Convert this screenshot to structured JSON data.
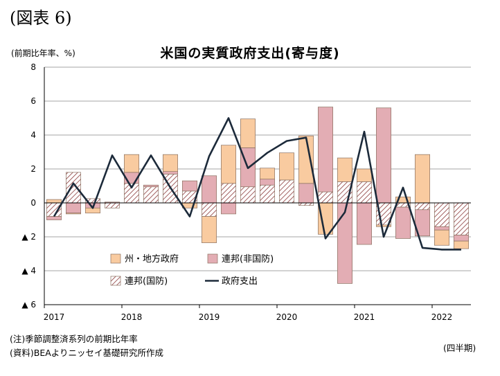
{
  "figure_label": "(図表 6)",
  "notes": {
    "note1": "(注)季節調整済系列の前期比年率",
    "note2": "(資料)BEAよりニッセイ基礎研究所作成",
    "period": "(四半期)"
  },
  "colors": {
    "state_local": "#f9cba0",
    "federal_nondefense": "#e3adb4",
    "federal_defense_hatch": "#8b3a3a",
    "line": "#1c2a3a"
  },
  "chart_data": {
    "type": "bar",
    "stacked": true,
    "title": "米国の実質政府支出(寄与度)",
    "ylabel": "(前期比年率、%)",
    "ylim": [
      -6,
      8
    ],
    "yticks": [
      8,
      6,
      4,
      2,
      0,
      -2,
      -4,
      -6
    ],
    "ytick_labels": [
      "8",
      "6",
      "4",
      "2",
      "0",
      "▲ 2",
      "▲ 4",
      "▲ 6"
    ],
    "x_year_labels": [
      {
        "label": "2017",
        "index": 0
      },
      {
        "label": "2018",
        "index": 4
      },
      {
        "label": "2019",
        "index": 8
      },
      {
        "label": "2020",
        "index": 12
      },
      {
        "label": "2021",
        "index": 16
      },
      {
        "label": "2022",
        "index": 20
      }
    ],
    "categories": [
      "2017Q1",
      "2017Q2",
      "2017Q3",
      "2017Q4",
      "2018Q1",
      "2018Q2",
      "2018Q3",
      "2018Q4",
      "2019Q1",
      "2019Q2",
      "2019Q3",
      "2019Q4",
      "2020Q1",
      "2020Q2",
      "2020Q3",
      "2020Q4",
      "2021Q1",
      "2021Q2",
      "2021Q3",
      "2021Q4",
      "2022Q1",
      "2022Q2"
    ],
    "grid": true,
    "legend_position": "lower-left",
    "series": [
      {
        "name": "連邦(国防)",
        "kind": "bar",
        "pattern": "hatch",
        "values": [
          -0.8,
          1.8,
          0.25,
          -0.3,
          1.15,
          0.95,
          1.7,
          0.7,
          -0.8,
          1.15,
          0.95,
          1.05,
          1.35,
          -0.15,
          0.65,
          1.25,
          1.25,
          -1.3,
          -0.25,
          -0.4,
          -1.4,
          -1.9
        ]
      },
      {
        "name": "連邦(非国防)",
        "kind": "bar",
        "values": [
          -0.2,
          -0.6,
          -0.3,
          0.05,
          0.65,
          0.1,
          0.15,
          0.6,
          1.6,
          -0.65,
          2.3,
          0.35,
          0.0,
          1.15,
          5.0,
          -4.75,
          -2.45,
          5.6,
          -1.85,
          -1.55,
          -0.2,
          -0.35
        ]
      },
      {
        "name": "州・地方政府",
        "kind": "bar",
        "values": [
          0.2,
          -0.05,
          -0.3,
          0.0,
          1.05,
          0.0,
          1.0,
          -0.3,
          -1.55,
          2.25,
          1.7,
          0.65,
          1.6,
          2.8,
          -1.85,
          1.4,
          0.75,
          -0.1,
          0.35,
          2.85,
          -0.9,
          -0.45
        ]
      },
      {
        "name": "政府支出",
        "kind": "line",
        "values": [
          -0.8,
          1.15,
          -0.3,
          2.8,
          0.9,
          2.8,
          0.9,
          -0.8,
          2.75,
          5.0,
          2.05,
          2.95,
          3.65,
          3.85,
          -2.1,
          -0.55,
          4.2,
          -2.0,
          0.9,
          -2.65,
          -2.75,
          -2.75
        ]
      }
    ]
  }
}
